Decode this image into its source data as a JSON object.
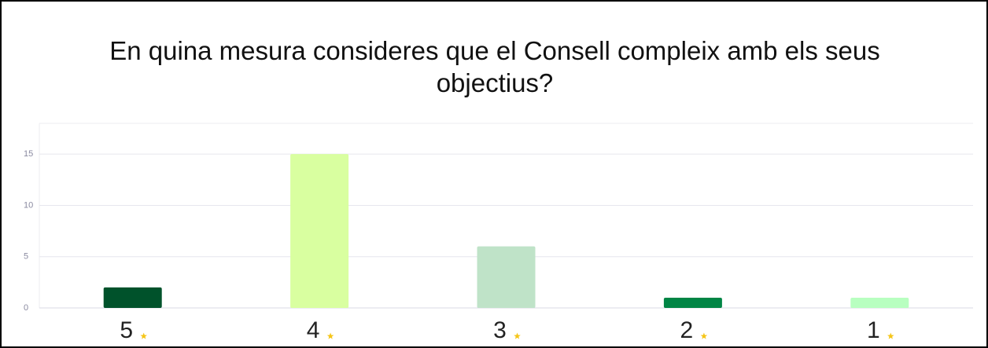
{
  "chart_data": {
    "type": "bar",
    "title": "En quina mesura consideres que el Consell compleix amb els seus objectius?",
    "categories": [
      "5",
      "4",
      "3",
      "2",
      "1"
    ],
    "values": [
      2,
      15,
      6,
      1,
      1
    ],
    "colors": [
      "#00522b",
      "#d9ffa0",
      "#bfe3c8",
      "#008545",
      "#b8ffc0"
    ],
    "ylim": [
      0,
      18
    ],
    "yticks": [
      0,
      5,
      10,
      15
    ],
    "grid": true
  }
}
